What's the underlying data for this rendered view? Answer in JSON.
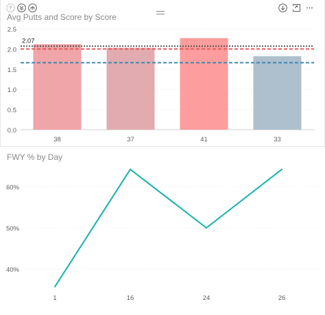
{
  "header": {
    "icons": [
      "up-arrow-icon",
      "drill-down-icon",
      "expand-hierarchy-icon",
      "drill-mode-icon",
      "focus-mode-icon",
      "more-options-icon"
    ]
  },
  "chart_data": [
    {
      "type": "bar",
      "title": "Avg Putts and Score by Score",
      "categories": [
        "38",
        "37",
        "41",
        "33"
      ],
      "values": [
        2.12,
        2.03,
        2.27,
        1.82
      ],
      "colors": [
        "#f0a5a9",
        "#e2abb0",
        "#fd9d9d",
        "#aebfcd"
      ],
      "ylim": [
        0,
        2.5
      ],
      "yticks": [
        "0.0",
        "0.5",
        "1.0",
        "1.5",
        "2.0",
        "2.5"
      ],
      "grid": true,
      "reference_lines": [
        {
          "value": 2.07,
          "label": "2.07",
          "color": "#555555",
          "style": "dotted"
        },
        {
          "value": 2.0,
          "label": "",
          "color": "#e8585b",
          "style": "dashed"
        },
        {
          "value": 1.66,
          "label": "",
          "color": "#3d88b0",
          "style": "dashed"
        }
      ]
    },
    {
      "type": "line",
      "title": "FWY % by Day",
      "x": [
        "1",
        "16",
        "24",
        "26"
      ],
      "values": [
        0.357,
        0.642,
        0.5,
        0.642
      ],
      "yticks": [
        "40%",
        "50%",
        "60%"
      ],
      "ytick_values": [
        0.4,
        0.5,
        0.6
      ],
      "color": "#14b2ab"
    }
  ]
}
